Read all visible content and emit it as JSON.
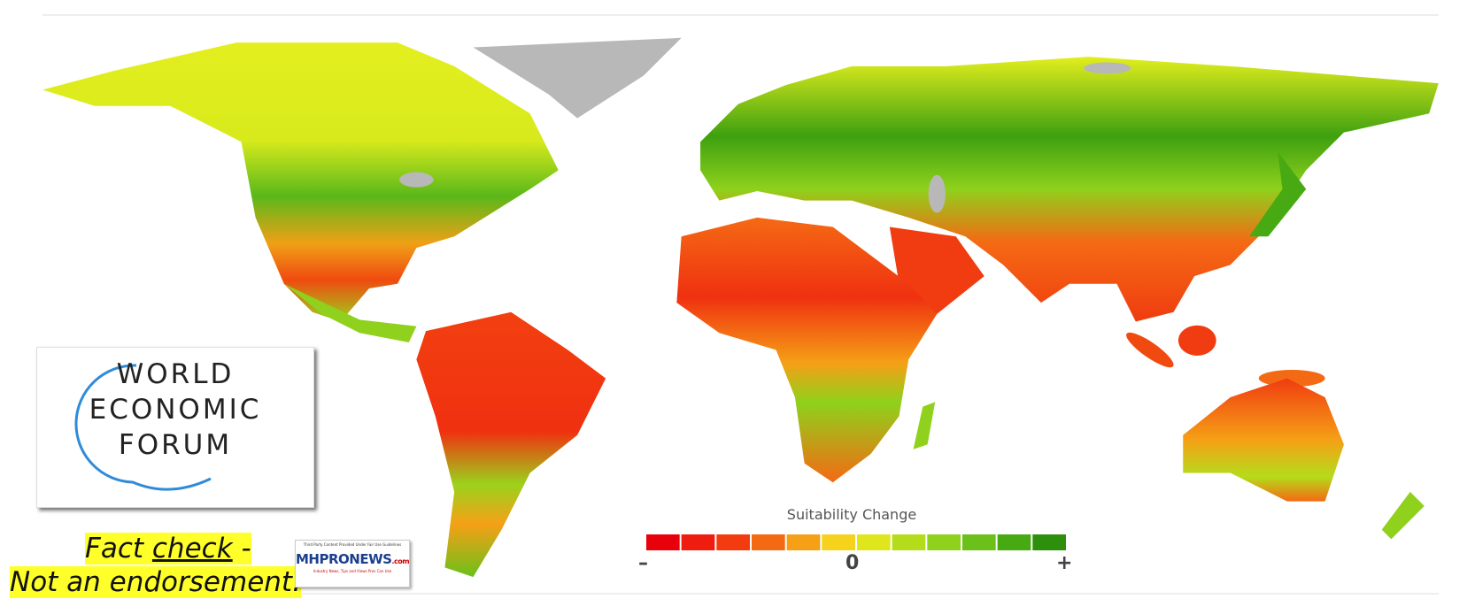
{
  "logo": {
    "lines": [
      "WORLD",
      "ECONOMIC",
      "FORUM"
    ]
  },
  "legend": {
    "title": "Suitability Change",
    "colors": [
      "#e8000b",
      "#ee1d0f",
      "#f23c10",
      "#f46a14",
      "#f5a016",
      "#f7d21c",
      "#e0e61c",
      "#b5dc1a",
      "#8fd11c",
      "#6bc01a",
      "#48aa12",
      "#2e8f0c"
    ],
    "min_label": "–",
    "mid_label": "0",
    "max_label": "+"
  },
  "disclaimer": {
    "line1_start": "Fact ",
    "line1_underlined": "check",
    "line1_end": " -",
    "line2": "Not an endorsement."
  },
  "badge": {
    "caption": "Third Party Content Provided Under Fair Use Guidelines",
    "name": "MHPRONEWS",
    "suffix": ".com",
    "tagline": "Industry News, Tips and Views Pros Can Use"
  }
}
